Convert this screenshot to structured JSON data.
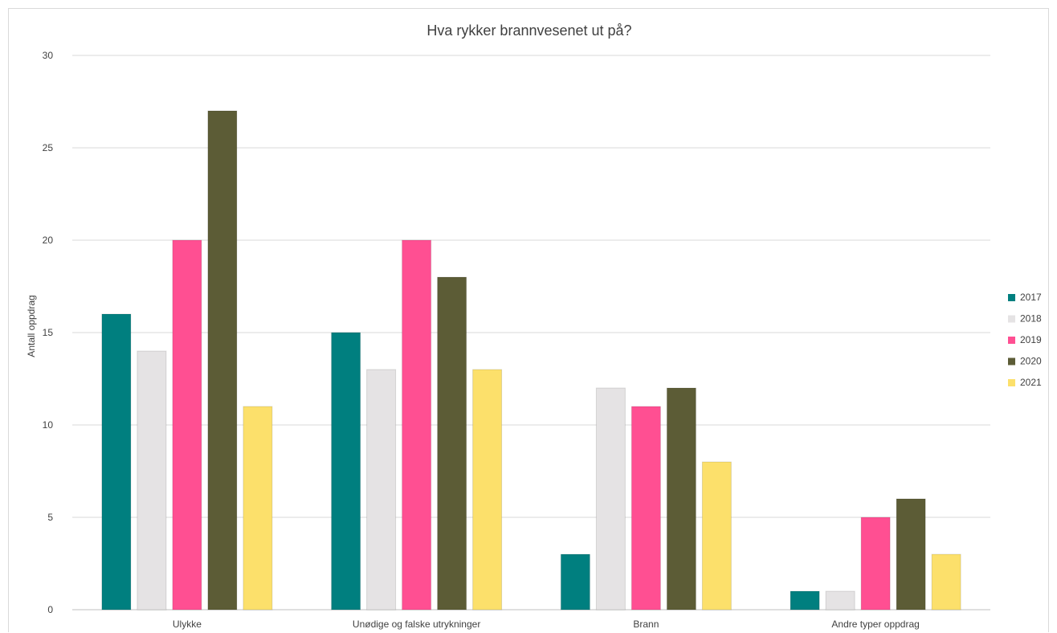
{
  "chart_data": {
    "type": "bar",
    "title": "Hva rykker brannvesenet ut på?",
    "xlabel": "",
    "ylabel": "Antall oppdrag",
    "ylim": [
      0,
      30
    ],
    "yticks": [
      0,
      5,
      10,
      15,
      20,
      25,
      30
    ],
    "grid": true,
    "legend_position": "right",
    "categories": [
      "Ulykke",
      "Unødige og falske utrykninger",
      "Brann",
      "Andre typer oppdrag"
    ],
    "series": [
      {
        "name": "2017",
        "color": "#007F7F",
        "values": [
          16,
          15,
          3,
          1
        ]
      },
      {
        "name": "2018",
        "color": "#E5E3E4",
        "values": [
          14,
          13,
          12,
          1
        ]
      },
      {
        "name": "2019",
        "color": "#FF4F92",
        "values": [
          20,
          20,
          11,
          5
        ]
      },
      {
        "name": "2020",
        "color": "#5C5C36",
        "values": [
          27,
          18,
          12,
          6
        ]
      },
      {
        "name": "2021",
        "color": "#FCE06B",
        "values": [
          11,
          13,
          8,
          3
        ]
      }
    ]
  }
}
